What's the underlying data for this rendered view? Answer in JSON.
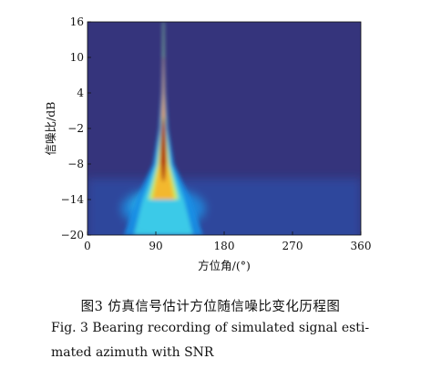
{
  "chart_data": {
    "type": "heatmap",
    "xlabel": "方位角/(°)",
    "ylabel": "信噪比/dB",
    "xlim": [
      0,
      360
    ],
    "ylim": [
      -20,
      16
    ],
    "x_ticks": [
      "0",
      "90",
      "180",
      "270",
      "360"
    ],
    "y_ticks": [
      "16",
      "10",
      "4",
      "−2",
      "−8",
      "−14",
      "−20"
    ],
    "background_color": "#35347c",
    "colormap": [
      "#35347c",
      "#2a55b7",
      "#1a8fe5",
      "#3fd0e8",
      "#c9ef54",
      "#f6b52a",
      "#e8321e",
      "#a3160e"
    ],
    "signal_bearing_deg": 100,
    "ridge": [
      {
        "snr_db": 16,
        "half_width_deg": 0.8
      },
      {
        "snr_db": 10,
        "half_width_deg": 1.2
      },
      {
        "snr_db": 4,
        "half_width_deg": 2.5
      },
      {
        "snr_db": -2,
        "half_width_deg": 6
      },
      {
        "snr_db": -8,
        "half_width_deg": 14
      },
      {
        "snr_db": -14,
        "half_width_deg": 36
      },
      {
        "snr_db": -20,
        "half_width_deg": 52
      }
    ],
    "peak_color_zone_snr_db": [
      -11,
      0
    ],
    "diffuse_noise_region": {
      "azimuth_range_deg": [
        0,
        360
      ],
      "snr_range_db": [
        -20,
        -8
      ]
    }
  },
  "captions": {
    "chinese": "图3   仿真信号估计方位随信噪比变化历程图",
    "english_line1": "Fig. 3  Bearing recording of simulated signal esti-",
    "english_line2": "mated azimuth with SNR"
  }
}
